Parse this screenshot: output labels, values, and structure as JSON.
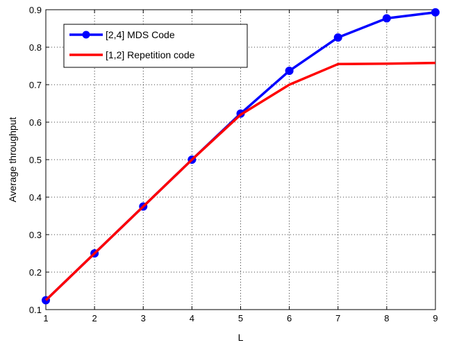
{
  "chart_data": {
    "type": "line",
    "title": "",
    "xlabel": "L",
    "ylabel": "Average throughput",
    "xlim": [
      1,
      9
    ],
    "ylim": [
      0.1,
      0.9
    ],
    "x": [
      1,
      2,
      3,
      4,
      5,
      6,
      7,
      8,
      9
    ],
    "x_ticks": [
      "1",
      "2",
      "3",
      "4",
      "5",
      "6",
      "7",
      "8",
      "9"
    ],
    "y_ticks": [
      "0.1",
      "0.2",
      "0.3",
      "0.4",
      "0.5",
      "0.6",
      "0.7",
      "0.8",
      "0.9"
    ],
    "grid": true,
    "grid_style": "dotted",
    "legend_position": "top-left",
    "series": [
      {
        "name": "[2,4] MDS Code",
        "color": "#0000ff",
        "marker": "circle",
        "values": [
          0.125,
          0.25,
          0.375,
          0.5,
          0.623,
          0.737,
          0.826,
          0.877,
          0.893
        ]
      },
      {
        "name": "[1,2] Repetition code",
        "color": "#ff0000",
        "marker": "none",
        "values": [
          0.125,
          0.25,
          0.375,
          0.5,
          0.62,
          0.7,
          0.755,
          0.756,
          0.758
        ]
      }
    ]
  }
}
